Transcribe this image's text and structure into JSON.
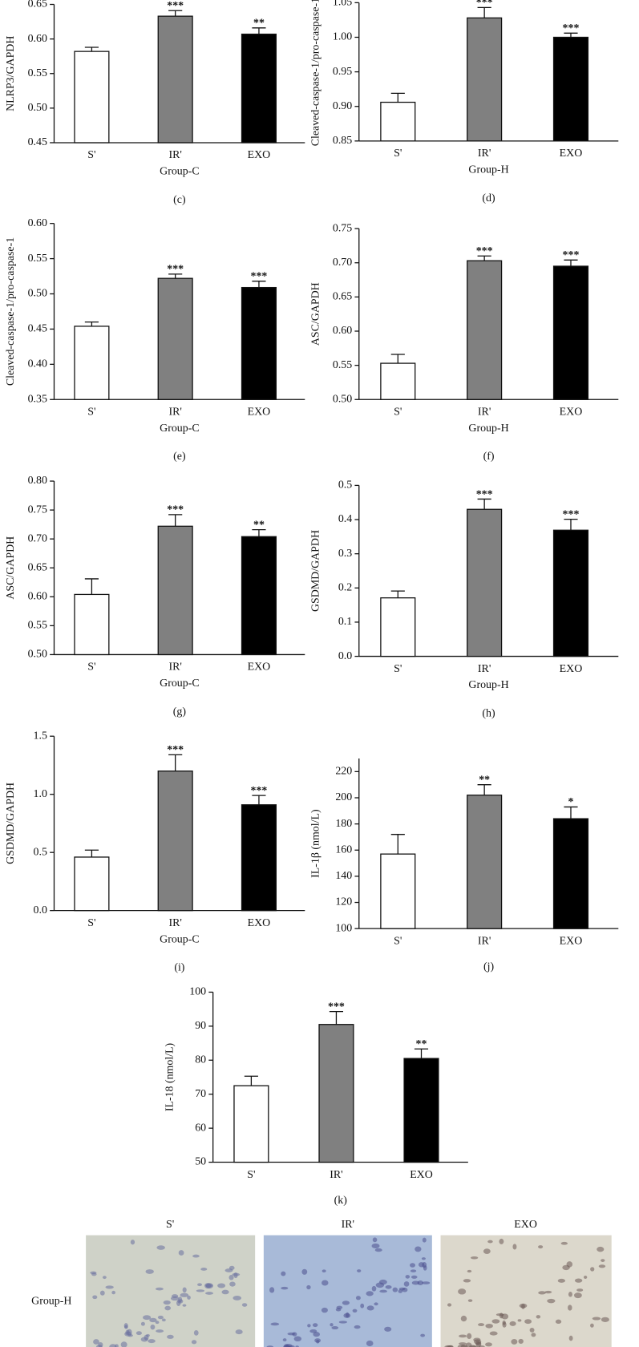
{
  "chart_data": [
    {
      "type": "bar",
      "caption": "(c)",
      "ylabel": "NLRP3/GAPDH",
      "xlabel": "Group-C",
      "categories": [
        "S'",
        "IR'",
        "EXO"
      ],
      "values": [
        0.582,
        0.633,
        0.607
      ],
      "errors": [
        0.006,
        0.008,
        0.009
      ],
      "annotations": [
        null,
        "***",
        "**"
      ],
      "colors": [
        "#ffffff",
        "#808080",
        "#000000"
      ],
      "ylim": [
        0.45,
        0.65
      ],
      "yticks": [
        0.45,
        {
          "value": 0.5,
          "label": "0.50"
        },
        0.55,
        {
          "value": 0.6,
          "label": "0.60"
        },
        0.65
      ]
    },
    {
      "type": "bar",
      "caption": "(d)",
      "ylabel": "Cleaved-caspase-1/pro-caspase-1",
      "xlabel": "Group-H",
      "categories": [
        "S'",
        "IR'",
        "EXO"
      ],
      "values": [
        0.906,
        1.028,
        1.0
      ],
      "errors": [
        0.013,
        0.015,
        0.006
      ],
      "annotations": [
        null,
        "***",
        "***"
      ],
      "colors": [
        "#ffffff",
        "#808080",
        "#000000"
      ],
      "ylim": [
        0.85,
        1.05
      ],
      "yticks": [
        0.85,
        {
          "value": 0.9,
          "label": "0.90"
        },
        0.95,
        {
          "value": 1,
          "label": "1.00"
        },
        1.05
      ]
    },
    {
      "type": "bar",
      "caption": "(e)",
      "ylabel": "Cleaved-caspase-1/pro-caspase-1",
      "xlabel": "Group-C",
      "categories": [
        "S'",
        "IR'",
        "EXO"
      ],
      "values": [
        0.454,
        0.522,
        0.509
      ],
      "errors": [
        0.006,
        0.006,
        0.009
      ],
      "annotations": [
        null,
        "***",
        "***"
      ],
      "colors": [
        "#ffffff",
        "#808080",
        "#000000"
      ],
      "ylim": [
        0.35,
        0.6
      ],
      "yticks": [
        0.35,
        {
          "value": 0.4,
          "label": "0.40"
        },
        0.45,
        {
          "value": 0.5,
          "label": "0.50"
        },
        0.55,
        {
          "value": 0.6,
          "label": "0.60"
        }
      ]
    },
    {
      "type": "bar",
      "caption": "(f)",
      "ylabel": "ASC/GAPDH",
      "xlabel": "Group-H",
      "categories": [
        "S'",
        "IR'",
        "EXO"
      ],
      "values": [
        0.553,
        0.703,
        0.695
      ],
      "errors": [
        0.013,
        0.007,
        0.009
      ],
      "annotations": [
        null,
        "***",
        "***"
      ],
      "colors": [
        "#ffffff",
        "#808080",
        "#000000"
      ],
      "ylim": [
        0.5,
        0.75
      ],
      "yticks": [
        {
          "value": 0.5,
          "label": "0.50"
        },
        0.55,
        {
          "value": 0.6,
          "label": "0.60"
        },
        0.65,
        {
          "value": 0.7,
          "label": "0.70"
        },
        0.75
      ]
    },
    {
      "type": "bar",
      "caption": "(g)",
      "ylabel": "ASC/GAPDH",
      "xlabel": "Group-C",
      "categories": [
        "S'",
        "IR'",
        "EXO"
      ],
      "values": [
        0.604,
        0.722,
        0.704
      ],
      "errors": [
        0.027,
        0.02,
        0.012
      ],
      "annotations": [
        null,
        "***",
        "**"
      ],
      "colors": [
        "#ffffff",
        "#808080",
        "#000000"
      ],
      "ylim": [
        0.5,
        0.8
      ],
      "yticks": [
        {
          "value": 0.5,
          "label": "0.50"
        },
        0.55,
        {
          "value": 0.6,
          "label": "0.60"
        },
        0.65,
        {
          "value": 0.7,
          "label": "0.70"
        },
        0.75,
        {
          "value": 0.8,
          "label": "0.80"
        }
      ]
    },
    {
      "type": "bar",
      "caption": "(h)",
      "ylabel": "GSDMD/GAPDH",
      "xlabel": "Group-H",
      "categories": [
        "S'",
        "IR'",
        "EXO"
      ],
      "values": [
        0.171,
        0.43,
        0.369
      ],
      "errors": [
        0.02,
        0.03,
        0.032
      ],
      "annotations": [
        null,
        "***",
        "***"
      ],
      "colors": [
        "#ffffff",
        "#808080",
        "#000000"
      ],
      "ylim": [
        0,
        0.5
      ],
      "yticks": [
        {
          "value": 0,
          "label": "0.0"
        },
        0.1,
        0.2,
        0.3,
        0.4,
        0.5
      ]
    },
    {
      "type": "bar",
      "caption": "(i)",
      "ylabel": "GSDMD/GAPDH",
      "xlabel": "Group-C",
      "categories": [
        "S'",
        "IR'",
        "EXO"
      ],
      "values": [
        0.46,
        1.2,
        0.91
      ],
      "errors": [
        0.06,
        0.14,
        0.08
      ],
      "annotations": [
        null,
        "***",
        "***"
      ],
      "colors": [
        "#ffffff",
        "#808080",
        "#000000"
      ],
      "ylim": [
        0,
        1.5
      ],
      "yticks": [
        {
          "value": 0,
          "label": "0.0"
        },
        0.5,
        {
          "value": 1,
          "label": "1.0"
        },
        1.5
      ]
    },
    {
      "type": "bar",
      "caption": "(j)",
      "ylabel": "IL-1β (nmol/L)",
      "categories": [
        "S'",
        "IR'",
        "EXO"
      ],
      "values": [
        157,
        202,
        184
      ],
      "errors": [
        15,
        8,
        9
      ],
      "annotations": [
        null,
        "**",
        "*"
      ],
      "colors": [
        "#ffffff",
        "#808080",
        "#000000"
      ],
      "ylim": [
        100,
        230
      ],
      "yticks": [
        100,
        120,
        140,
        160,
        180,
        200,
        220
      ]
    },
    {
      "type": "bar",
      "caption": "(k)",
      "ylabel": "IL-18 (nmol/L)",
      "categories": [
        "S'",
        "IR'",
        "EXO"
      ],
      "values": [
        72.5,
        90.5,
        80.5
      ],
      "errors": [
        2.8,
        3.8,
        2.8
      ],
      "annotations": [
        null,
        "***",
        "**"
      ],
      "colors": [
        "#ffffff",
        "#808080",
        "#000000"
      ],
      "ylim": [
        50,
        100
      ],
      "yticks": [
        50,
        60,
        70,
        80,
        90,
        100
      ]
    }
  ],
  "micrograph": {
    "columns": [
      "S'",
      "IR'",
      "EXO"
    ],
    "row_label": "Group-H"
  }
}
